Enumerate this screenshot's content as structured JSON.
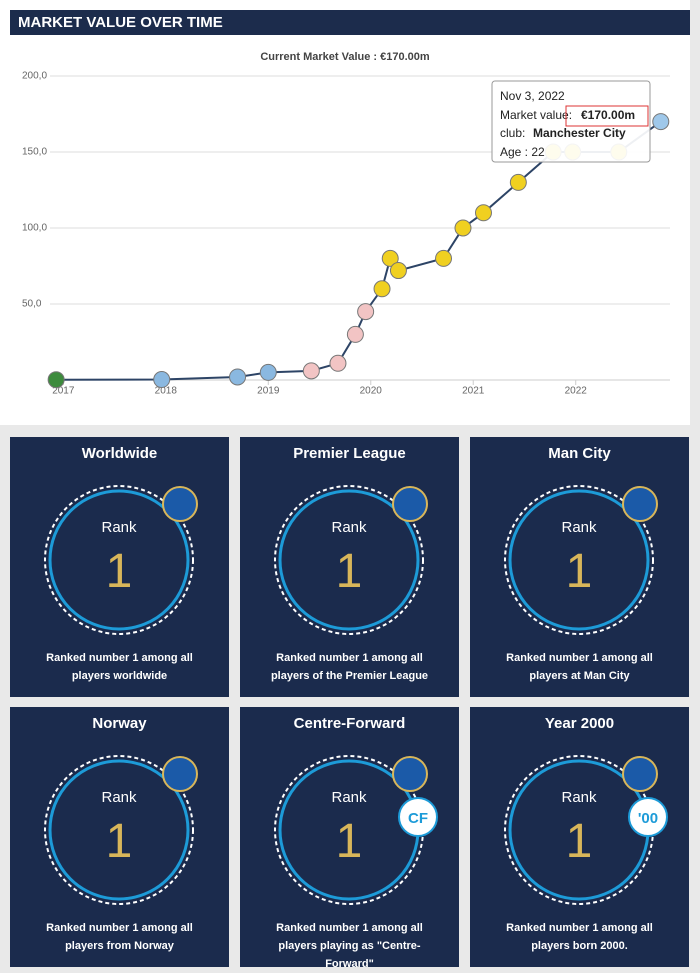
{
  "header": {
    "title": "MARKET VALUE OVER TIME"
  },
  "chart_data": {
    "type": "line",
    "title": "Current Market Value : €170.00m",
    "x": [
      2016.93,
      2017.96,
      2018.7,
      2019.0,
      2019.42,
      2019.68,
      2019.85,
      2019.95,
      2020.11,
      2020.19,
      2020.27,
      2020.71,
      2020.9,
      2021.1,
      2021.44,
      2021.78,
      2021.97,
      2022.42,
      2022.83
    ],
    "series": [
      {
        "name": "Market value",
        "color": "#2d4466",
        "values": [
          0.2,
          0.3,
          2,
          5,
          6,
          11,
          30,
          45,
          60,
          80,
          72,
          80,
          100,
          110,
          130,
          150,
          150,
          150,
          170
        ],
        "marker_colors": [
          "#3d8b3d",
          "#8ab8e0",
          "#8ab8e0",
          "#8ab8e0",
          "#f2c4c4",
          "#f2c4c4",
          "#f2c4c4",
          "#f2c4c4",
          "#f0d020",
          "#f0d020",
          "#f0d020",
          "#f0d020",
          "#f0d020",
          "#f0d020",
          "#f0d020",
          "#f0d020",
          "#f0d020",
          "#f0d020",
          "#9fc8ea"
        ]
      }
    ],
    "xlim": [
      2016.87,
      2022.92
    ],
    "xticks": [
      2017,
      2018,
      2019,
      2020,
      2021,
      2022
    ],
    "ylim": [
      0,
      200
    ],
    "yticks": [
      {
        "value": 50,
        "label": "50,0"
      },
      {
        "value": 100,
        "label": "100,0"
      },
      {
        "value": 150,
        "label": "150,0"
      },
      {
        "value": 200,
        "label": "200,0"
      }
    ],
    "grid": true,
    "tooltip": {
      "date": "Nov 3, 2022",
      "value_label": "Market value:",
      "value": "€170.00m",
      "club_label": "club:",
      "club": "Manchester City",
      "age": "Age : 22"
    }
  },
  "cards": [
    {
      "title": "Worldwide",
      "rank_label": "Rank",
      "rank": 1,
      "text": "Ranked number 1 among all players worldwide"
    },
    {
      "title": "Premier League",
      "rank_label": "Rank",
      "rank": 1,
      "text": "Ranked number 1 among all players of the Premier League"
    },
    {
      "title": "Man City",
      "rank_label": "Rank",
      "rank": 1,
      "text": "Ranked number 1 among all players at Man City"
    },
    {
      "title": "Norway",
      "rank_label": "Rank",
      "rank": 1,
      "text": "Ranked number 1 among all players from Norway"
    },
    {
      "title": "Centre-Forward",
      "rank_label": "Rank",
      "rank": 1,
      "badge": "CF",
      "text": "Ranked number 1 among all players playing as \"Centre-Forward\""
    },
    {
      "title": "Year 2000",
      "rank_label": "Rank",
      "rank": 1,
      "badge": "'00",
      "text": "Ranked number 1 among all players born 2000."
    }
  ]
}
